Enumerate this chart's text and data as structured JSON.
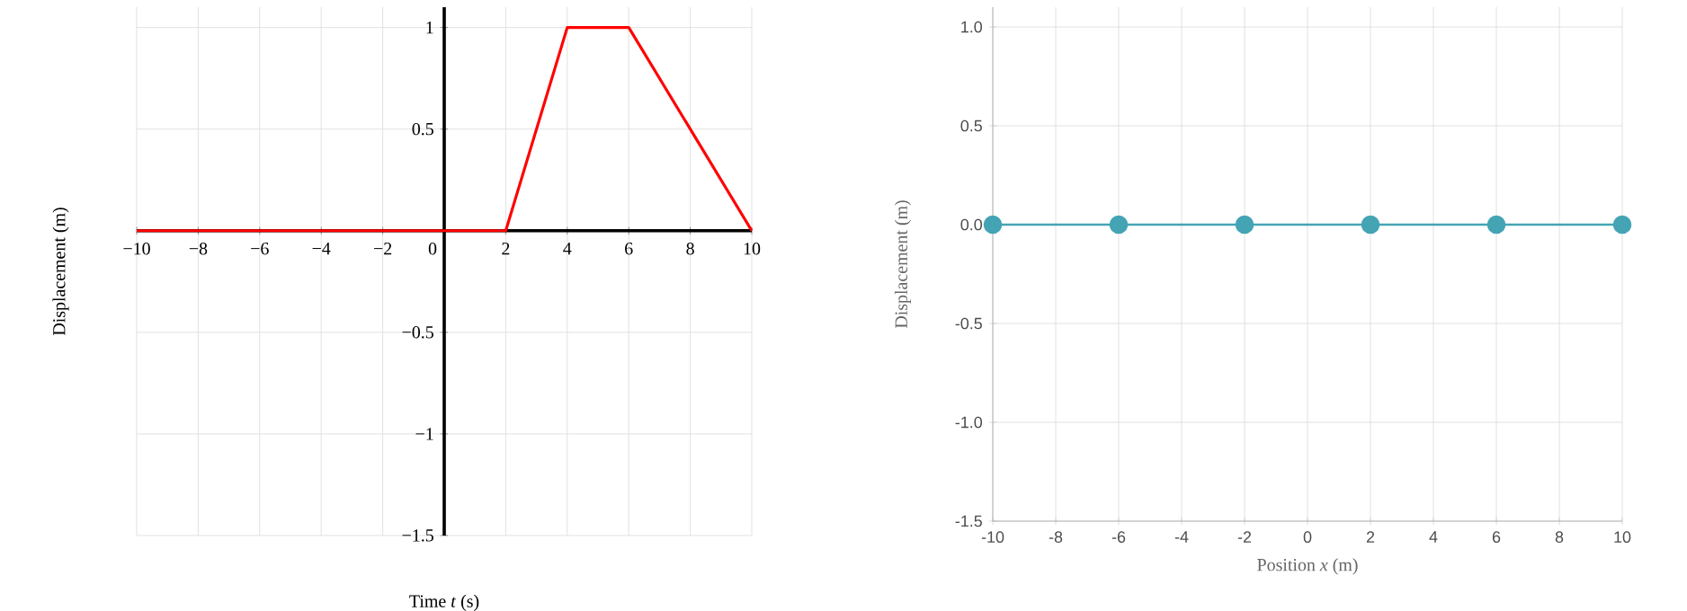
{
  "chart_data": [
    {
      "type": "line",
      "xlabel": "Time *t* (s)",
      "ylabel": "Displacement (m)",
      "xlim": [
        -10,
        10
      ],
      "ylim": [
        -1.5,
        1.1
      ],
      "xticks": [
        {
          "value": -10,
          "label": "−10"
        },
        {
          "value": -8,
          "label": "−8"
        },
        {
          "value": -6,
          "label": "−6"
        },
        {
          "value": -4,
          "label": "−4"
        },
        {
          "value": -2,
          "label": "−2"
        },
        0,
        2,
        4,
        6,
        8,
        10
      ],
      "yticks": [
        {
          "value": -1.5,
          "label": "−1.5"
        },
        {
          "value": -1,
          "label": "−1"
        },
        {
          "value": -0.5,
          "label": "−0.5"
        },
        0.5,
        1
      ],
      "grid": true,
      "marker": "none",
      "line_style": "solid",
      "series": [
        {
          "color": "#ff0000",
          "x": [
            -10,
            2,
            4,
            6,
            10
          ],
          "values": [
            0,
            0,
            1,
            1,
            0
          ]
        }
      ]
    },
    {
      "type": "line",
      "xlabel": "Position *x* (m)",
      "ylabel": "Displacement (m)",
      "xlim": [
        -10,
        10
      ],
      "ylim": [
        -1.5,
        1.1
      ],
      "xticks": [
        -10,
        -8,
        -6,
        -4,
        -2,
        0,
        2,
        4,
        6,
        8,
        10
      ],
      "yticks": [
        {
          "value": -1.5,
          "label": "-1.5"
        },
        {
          "value": -1,
          "label": "-1.0"
        },
        {
          "value": -0.5,
          "label": "-0.5"
        },
        {
          "value": 0,
          "label": "0.0"
        },
        {
          "value": 0.5,
          "label": "0.5"
        },
        {
          "value": 1,
          "label": "1.0"
        }
      ],
      "grid": true,
      "marker": "circle",
      "line_style": "solid",
      "series": [
        {
          "color": "#44a4b4",
          "x": [
            -10,
            -6,
            -2,
            2,
            6,
            10
          ],
          "values": [
            0,
            0,
            0,
            0,
            0,
            0
          ]
        }
      ]
    }
  ]
}
